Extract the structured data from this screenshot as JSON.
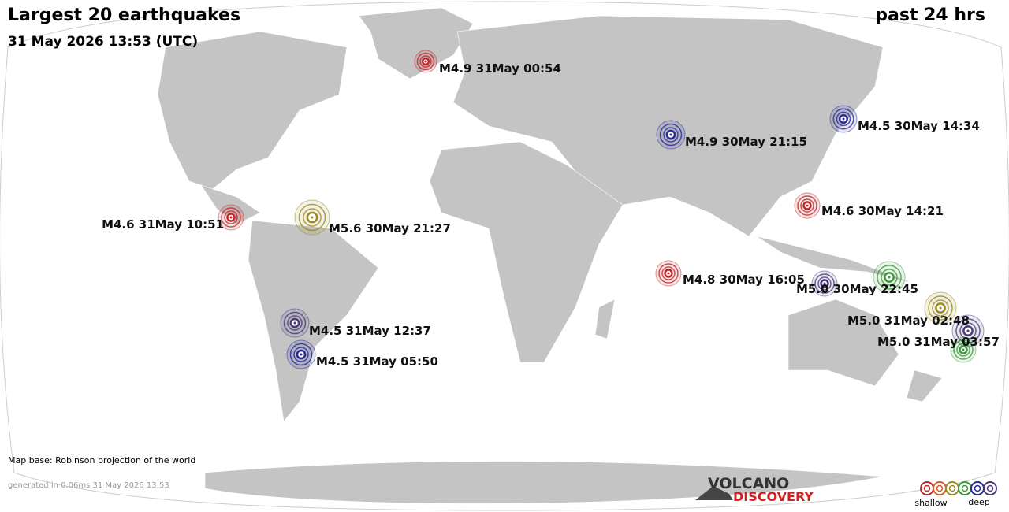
{
  "header": {
    "title": "Largest 20 earthquakes",
    "subtitle": "31 May 2026 13:53 (UTC)",
    "period": "past 24 hrs"
  },
  "quakes": [
    {
      "label": "M4.9 31May 00:54",
      "color": "#c0282a"
    },
    {
      "label": "M4.5 30May 14:34",
      "color": "#2a2a9a"
    },
    {
      "label": "M4.9 30May 21:15",
      "color": "#2a2a9a"
    },
    {
      "label": "M4.6 30May 14:21",
      "color": "#c0282a"
    },
    {
      "label": "M4.6 31May 10:51",
      "color": "#c0282a"
    },
    {
      "label": "M5.6 30May 21:27",
      "color": "#9a8a20"
    },
    {
      "label": "M4.8 30May 16:05",
      "color": "#c0282a"
    },
    {
      "label": "M5.0 30May 22:45",
      "color": "#4a3a7a"
    },
    {
      "color": "#3a9a3a"
    },
    {
      "label": "M5.0 31May 02:48",
      "color": "#9a8a20"
    },
    {
      "label": "M5.0 31May 03:57",
      "color": "#4a3a7a"
    },
    {
      "color": "#3a9a3a"
    },
    {
      "label": "M4.5 31May 12:37",
      "color": "#4a3a7a"
    },
    {
      "label": "M4.5 31May 05:50",
      "color": "#2a2a9a"
    }
  ],
  "footer": {
    "map_base": "Map base: Robinson projection of the world",
    "generated": "generated in 0.06ms 31 May 2026 13:53",
    "logo_top": "VOLCANO",
    "logo_bottom": "DISCOVERY"
  },
  "legend": {
    "shallow": "shallow",
    "deep": "deep",
    "colors": [
      "#c0282a",
      "#d0602a",
      "#9a8a20",
      "#3a9a3a",
      "#2a2a9a",
      "#4a3a7a"
    ]
  }
}
